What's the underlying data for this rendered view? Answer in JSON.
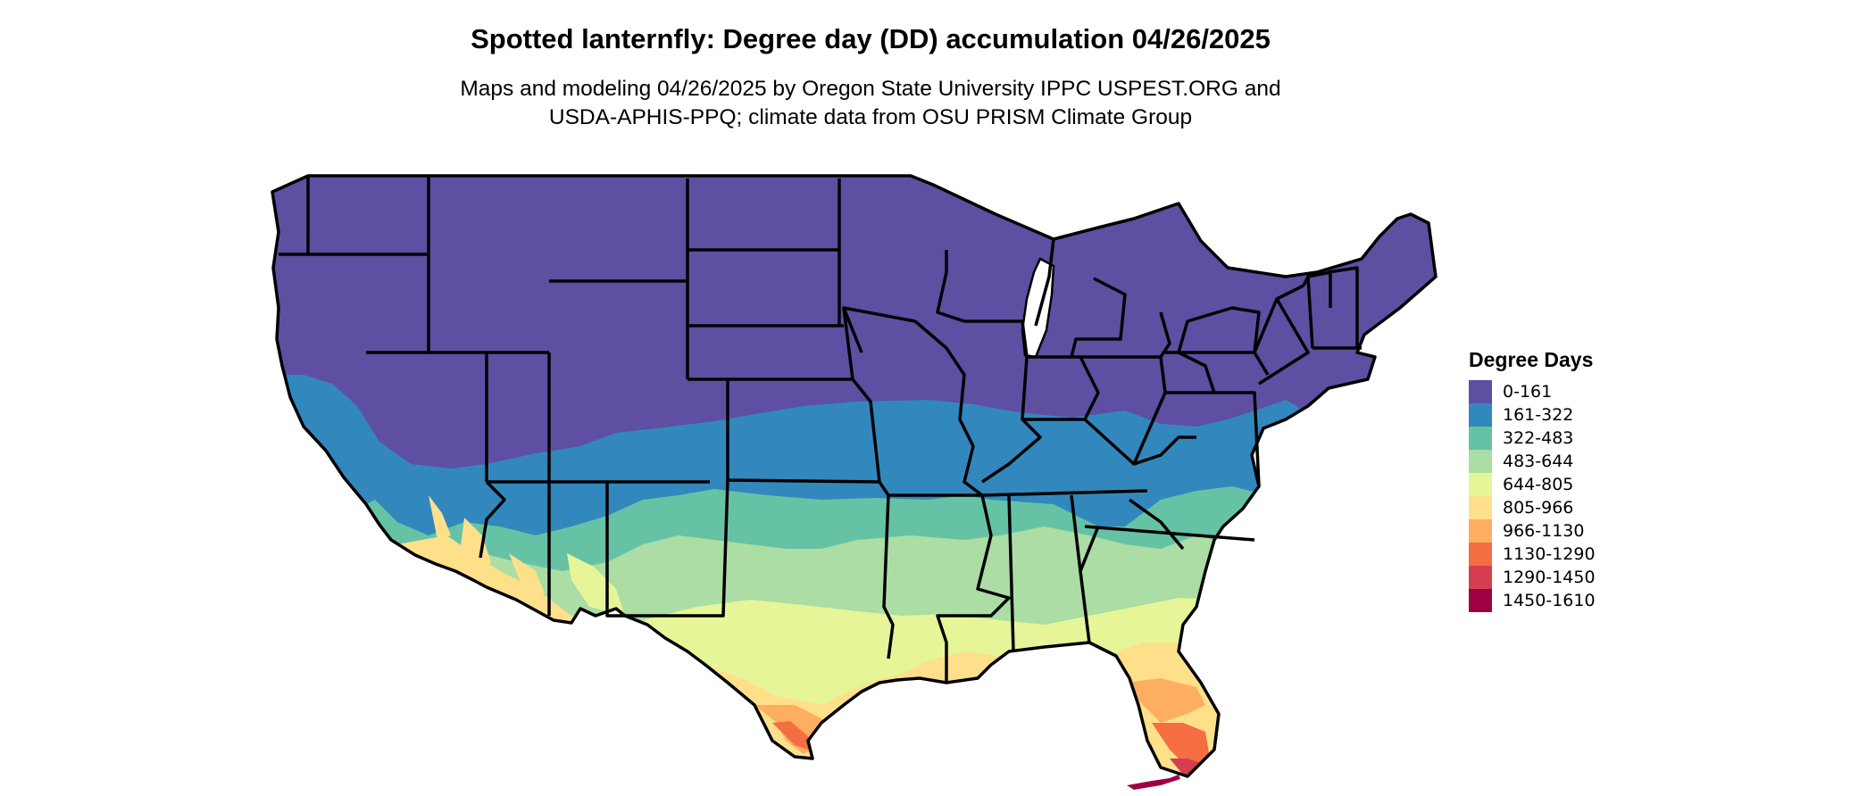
{
  "title": "Spotted lanternfly: Degree day (DD) accumulation 04/26/2025",
  "subtitle_line1": "Maps and modeling 04/26/2025 by Oregon State University IPPC USPEST.ORG and",
  "subtitle_line2": "USDA-APHIS-PPQ; climate data from OSU PRISM Climate Group",
  "legend": {
    "title": "Degree Days",
    "items": [
      {
        "label": "0-161",
        "color": "#5e4fa2"
      },
      {
        "label": "161-322",
        "color": "#3288bd"
      },
      {
        "label": "322-483",
        "color": "#66c2a5"
      },
      {
        "label": "483-644",
        "color": "#abdda4"
      },
      {
        "label": "644-805",
        "color": "#e6f598"
      },
      {
        "label": "805-966",
        "color": "#fee08b"
      },
      {
        "label": "966-1130",
        "color": "#fdae61"
      },
      {
        "label": "1130-1290",
        "color": "#f46d43"
      },
      {
        "label": "1290-1450",
        "color": "#d53e4f"
      },
      {
        "label": "1450-1610",
        "color": "#9e0142"
      }
    ]
  }
}
